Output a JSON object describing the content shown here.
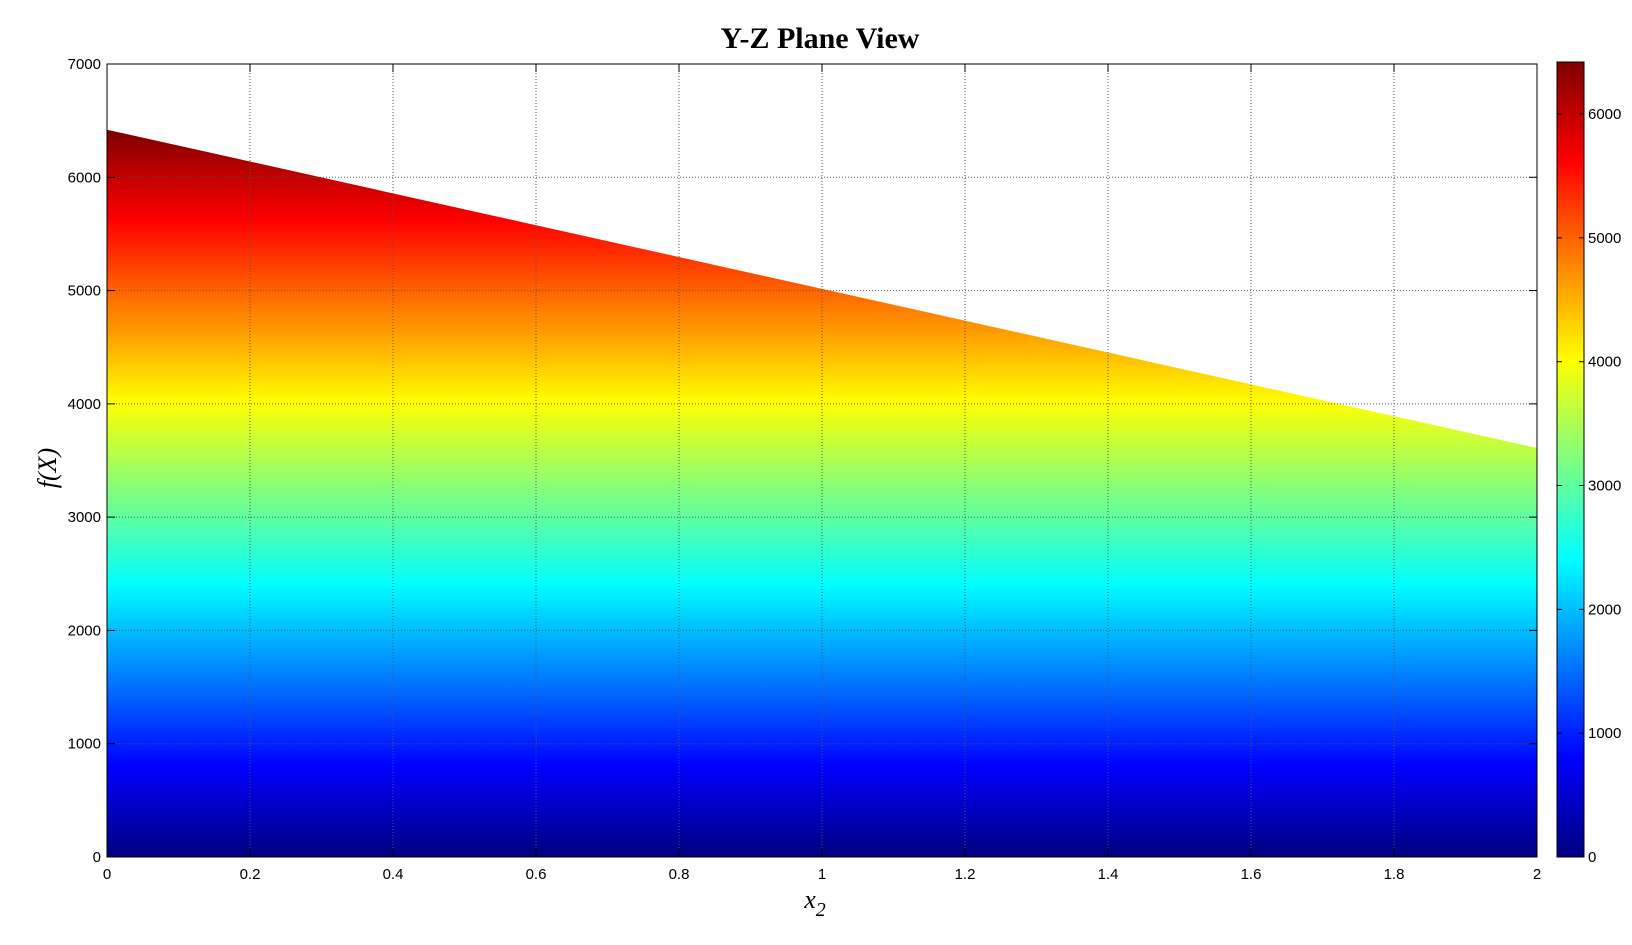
{
  "chart_data": {
    "type": "area",
    "title": "Y-Z Plane View",
    "xlabel": "x",
    "xlabel_subscript": "2",
    "ylabel": "f(X)",
    "xlim": [
      0,
      2
    ],
    "ylim": [
      0,
      7000
    ],
    "xticks": [
      "0",
      "0.2",
      "0.4",
      "0.6",
      "0.8",
      "1",
      "1.2",
      "1.4",
      "1.6",
      "1.8",
      "2"
    ],
    "yticks": [
      "0",
      "1000",
      "2000",
      "3000",
      "4000",
      "5000",
      "6000",
      "7000"
    ],
    "grid": true,
    "boundary": {
      "x": [
        0,
        2
      ],
      "y": [
        6420,
        3610
      ]
    },
    "colormap": "jet",
    "colorbar": {
      "range": [
        0,
        6420
      ],
      "ticks": [
        "0",
        "1000",
        "2000",
        "3000",
        "4000",
        "5000",
        "6000"
      ],
      "placement": "right"
    }
  }
}
